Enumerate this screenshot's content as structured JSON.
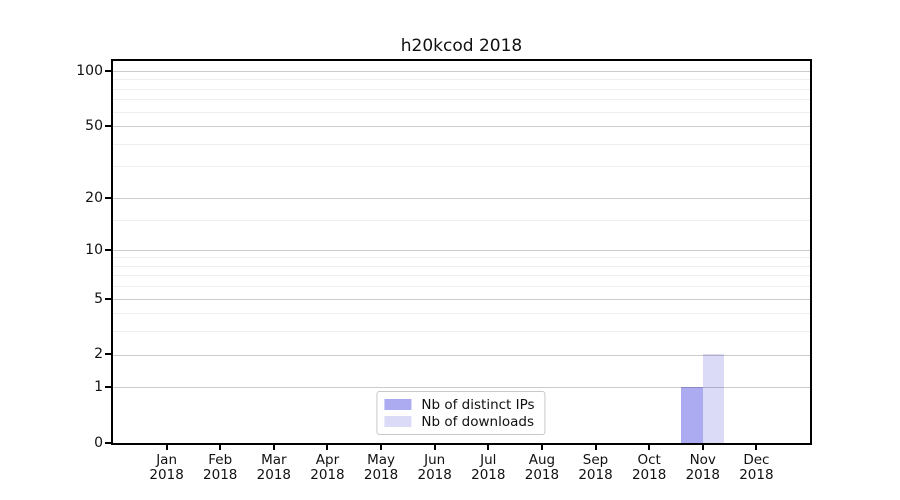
{
  "chart_data": {
    "type": "bar",
    "title": "h20kcod 2018",
    "categories": [
      "Jan",
      "Feb",
      "Mar",
      "Apr",
      "May",
      "Jun",
      "Jul",
      "Aug",
      "Sep",
      "Oct",
      "Nov",
      "Dec"
    ],
    "year_label": "2018",
    "series": [
      {
        "name": "Nb of distinct IPs",
        "color": "#acabf2",
        "values": [
          0,
          0,
          0,
          0,
          0,
          0,
          0,
          0,
          0,
          0,
          1,
          0
        ]
      },
      {
        "name": "Nb of downloads",
        "color": "#dbdaf7",
        "values": [
          0,
          0,
          0,
          0,
          0,
          0,
          0,
          0,
          0,
          0,
          2,
          0
        ]
      }
    ],
    "y_axis": {
      "scale": "log1p",
      "range": [
        0,
        113.4
      ],
      "major_ticks": [
        0,
        1,
        2,
        5,
        10,
        20,
        50,
        100
      ],
      "minor_ticks": [
        3,
        4,
        6,
        7,
        8,
        9,
        15,
        30,
        40,
        60,
        70,
        80,
        90
      ]
    },
    "legend": {
      "position": "lower center",
      "entries": [
        "Nb of distinct IPs",
        "Nb of downloads"
      ]
    },
    "grid": {
      "major": true,
      "minor": true,
      "grid_above_bars": true
    }
  }
}
